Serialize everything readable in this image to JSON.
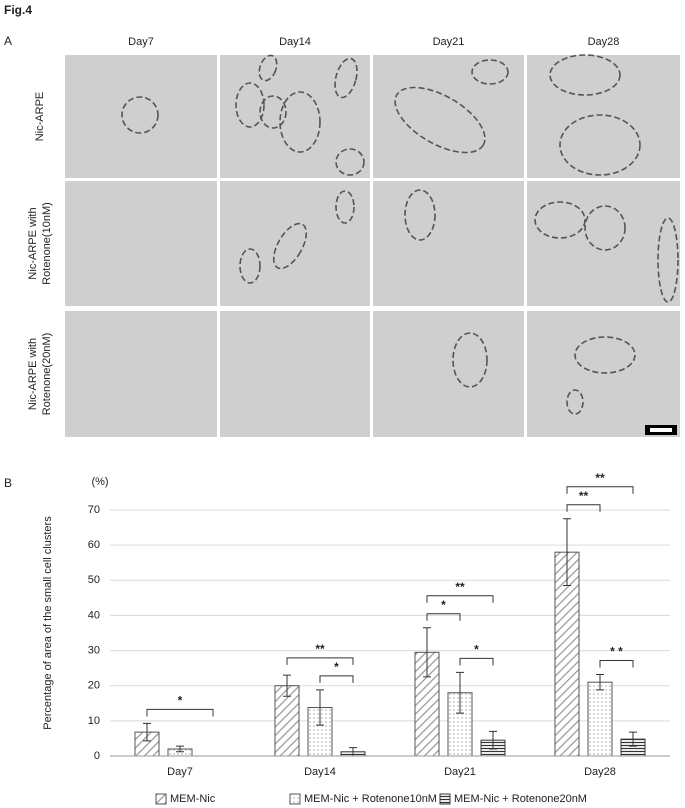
{
  "figure_label": "Fig.4",
  "panel_a": {
    "label": "A",
    "columns": [
      "Day7",
      "Day14",
      "Day21",
      "Day28"
    ],
    "rows": [
      [
        "Nic-ARPE"
      ],
      [
        "Nic-ARPE  with",
        "Rotenone(10nM)"
      ],
      [
        "Nic-ARPE  with",
        "Rotenone(20nM)"
      ]
    ]
  },
  "panel_b_label": "B",
  "chart_data": {
    "type": "bar",
    "y_label": "Percentage of area of the small cell clusters",
    "y_unit": "(%)",
    "categories": [
      "Day7",
      "Day14",
      "Day21",
      "Day28"
    ],
    "series": [
      {
        "name": "MEM-Nic",
        "color": "#555555",
        "pattern": "diagonal",
        "values": [
          6.8,
          20,
          29.5,
          58
        ],
        "errors": [
          2.5,
          3,
          7,
          9.5
        ]
      },
      {
        "name": "MEM-Nic + Rotenone10nM",
        "color": "#555555",
        "pattern": "dots",
        "values": [
          2,
          13.8,
          18,
          21
        ],
        "errors": [
          0.8,
          5,
          5.8,
          2.2
        ]
      },
      {
        "name": "MEM-Nic + Rotenone20nM",
        "color": "#333333",
        "pattern": "horizontal",
        "values": [
          0,
          1.2,
          4.5,
          4.8
        ],
        "errors": [
          0,
          1.2,
          2.5,
          2
        ]
      }
    ],
    "ylim": [
      0,
      70
    ],
    "yticks": [
      0,
      10,
      20,
      30,
      40,
      50,
      60,
      70
    ],
    "grid": true,
    "annotations": [
      {
        "category": "Day7",
        "from": "MEM-Nic",
        "to": "MEM-Nic + Rotenone20nM",
        "label": "*"
      },
      {
        "category": "Day14",
        "from": "MEM-Nic + Rotenone10nM",
        "to": "MEM-Nic + Rotenone20nM",
        "label": "*"
      },
      {
        "category": "Day14",
        "from": "MEM-Nic",
        "to": "MEM-Nic + Rotenone20nM",
        "label": "**"
      },
      {
        "category": "Day21",
        "from": "MEM-Nic + Rotenone10nM",
        "to": "MEM-Nic + Rotenone20nM",
        "label": "*"
      },
      {
        "category": "Day21",
        "from": "MEM-Nic",
        "to": "MEM-Nic + Rotenone10nM",
        "label": "*"
      },
      {
        "category": "Day21",
        "from": "MEM-Nic",
        "to": "MEM-Nic + Rotenone20nM",
        "label": "**"
      },
      {
        "category": "Day28",
        "from": "MEM-Nic + Rotenone10nM",
        "to": "MEM-Nic + Rotenone20nM",
        "label": "* *"
      },
      {
        "category": "Day28",
        "from": "MEM-Nic",
        "to": "MEM-Nic + Rotenone10nM",
        "label": "**"
      },
      {
        "category": "Day28",
        "from": "MEM-Nic",
        "to": "MEM-Nic + Rotenone20nM",
        "label": "**"
      }
    ],
    "legend": "bottom"
  }
}
